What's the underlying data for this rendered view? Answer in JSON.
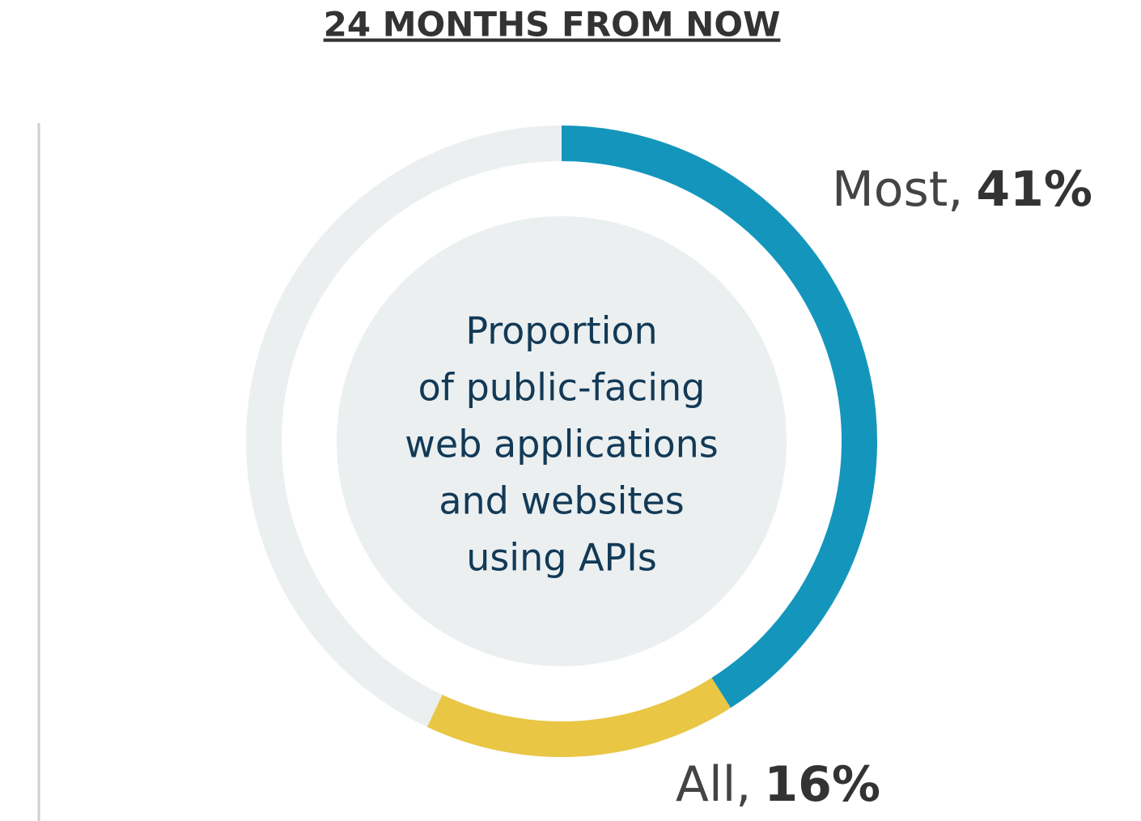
{
  "chart_data": {
    "type": "donut",
    "title": "24 MONTHS FROM NOW",
    "center_text": [
      "Proportion",
      "of public-facing",
      "web applications",
      "and websites",
      "using APIs"
    ],
    "categories": [
      "Most,",
      "All,"
    ],
    "values": [
      41,
      16
    ],
    "value_labels": [
      "41%",
      "16%"
    ],
    "colors": [
      "#1496bc",
      "#e9c643"
    ],
    "ring_color": "#eceff0"
  }
}
